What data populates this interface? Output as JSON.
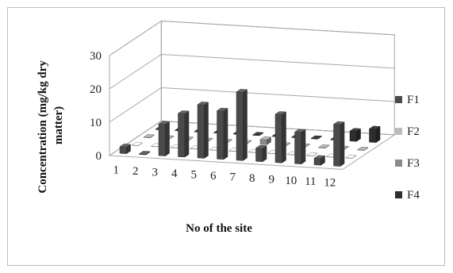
{
  "chart_data": {
    "type": "bar",
    "categories": [
      "1",
      "2",
      "3",
      "4",
      "5",
      "6",
      "7",
      "8",
      "9",
      "10",
      "11",
      "12"
    ],
    "series": [
      {
        "name": "F1",
        "values": [
          2.0,
          0.2,
          9.5,
          13.0,
          16.0,
          14.5,
          20.5,
          4.0,
          14.5,
          9.5,
          2.0,
          12.5
        ]
      },
      {
        "name": "F2",
        "values": [
          0.1,
          0.1,
          0.1,
          0.1,
          0.1,
          0.1,
          0.1,
          0.1,
          0.1,
          0.1,
          0.1,
          0.1
        ]
      },
      {
        "name": "F3",
        "values": [
          0.1,
          0.1,
          0.1,
          0.1,
          0.1,
          0.1,
          1.5,
          0.1,
          0.1,
          0.1,
          0.1,
          0.1
        ]
      },
      {
        "name": "F4",
        "values": [
          0.1,
          0.1,
          0.1,
          0.1,
          0.1,
          0.1,
          0.1,
          0.1,
          0.1,
          0.1,
          3.0,
          4.0
        ]
      }
    ],
    "xlabel": "No of the site",
    "ylabel": "Concentration (mg/kg dry matter)",
    "ylabel_lines": [
      "Concentration (mg/kg dry",
      "matter)"
    ],
    "ylim": [
      0,
      30
    ],
    "yticks": [
      0,
      10,
      20,
      30
    ],
    "grid": true,
    "legend": "right",
    "series_colors": [
      "#4a4a4a",
      "#bcbcbc",
      "#8a8a8a",
      "#2e2e2e"
    ]
  }
}
